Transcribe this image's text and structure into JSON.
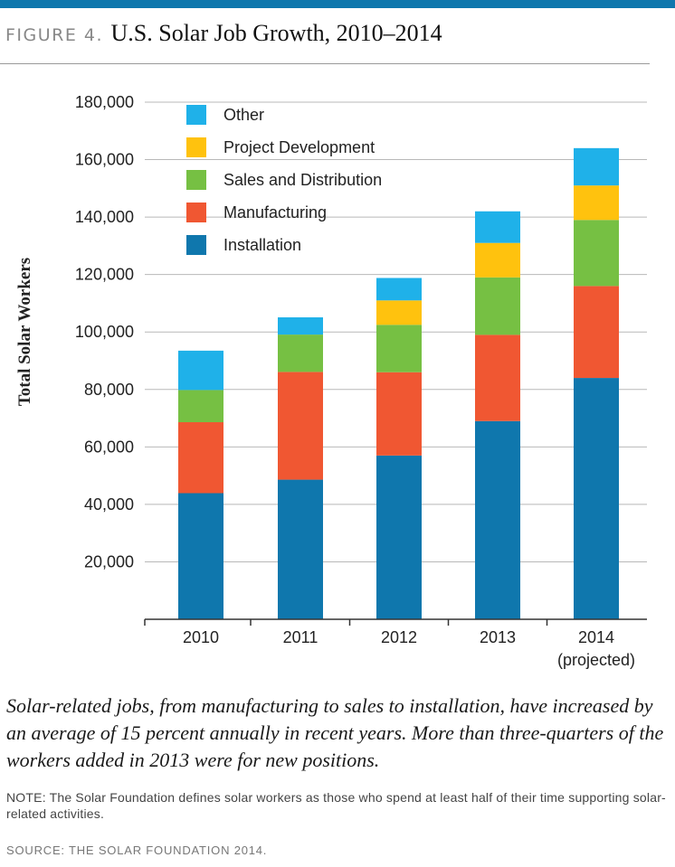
{
  "header": {
    "figure_label": "FIGURE 4.",
    "title": "U.S. Solar Job Growth, 2010–2014"
  },
  "chart_data": {
    "type": "bar",
    "stacked": true,
    "title": "U.S. Solar Job Growth, 2010–2014",
    "xlabel": "",
    "ylabel": "Total Solar Workers",
    "ylim": [
      0,
      180000
    ],
    "yticks": [
      20000,
      40000,
      60000,
      80000,
      100000,
      120000,
      140000,
      160000,
      180000
    ],
    "ytick_labels": [
      "20,000",
      "40,000",
      "60,000",
      "80,000",
      "100,000",
      "120,000",
      "140,000",
      "160,000",
      "180,000"
    ],
    "categories": [
      "2010",
      "2011",
      "2012",
      "2013",
      "2014"
    ],
    "category_sublabels": [
      "",
      "",
      "",
      "",
      "(projected)"
    ],
    "legend_position": "top-left",
    "legend_order": [
      "Other",
      "Project Development",
      "Sales and Distribution",
      "Manufacturing",
      "Installation"
    ],
    "series": [
      {
        "name": "Installation",
        "color": "#0f77ad",
        "values": [
          43900,
          48600,
          57000,
          69000,
          84000
        ]
      },
      {
        "name": "Manufacturing",
        "color": "#f05732",
        "values": [
          24700,
          37500,
          29000,
          30000,
          32000
        ]
      },
      {
        "name": "Sales and Distribution",
        "color": "#76c043",
        "values": [
          11200,
          13000,
          16500,
          20000,
          23000
        ]
      },
      {
        "name": "Project Development",
        "color": "#ffc20e",
        "values": [
          0,
          0,
          8500,
          12000,
          12000
        ]
      },
      {
        "name": "Other",
        "color": "#1fb1e9",
        "values": [
          13700,
          6000,
          7800,
          11000,
          13000
        ]
      }
    ]
  },
  "caption": "Solar-related jobs, from manufacturing to sales to installation, have increased by an average of 15 percent annually in recent years. More than three-quarters of the workers added in 2013 were for new positions.",
  "note": "NOTE: The Solar Foundation defines solar workers as those who spend at least half of their time supporting solar-related activities.",
  "source": "SOURCE: THE SOLAR FOUNDATION 2014."
}
